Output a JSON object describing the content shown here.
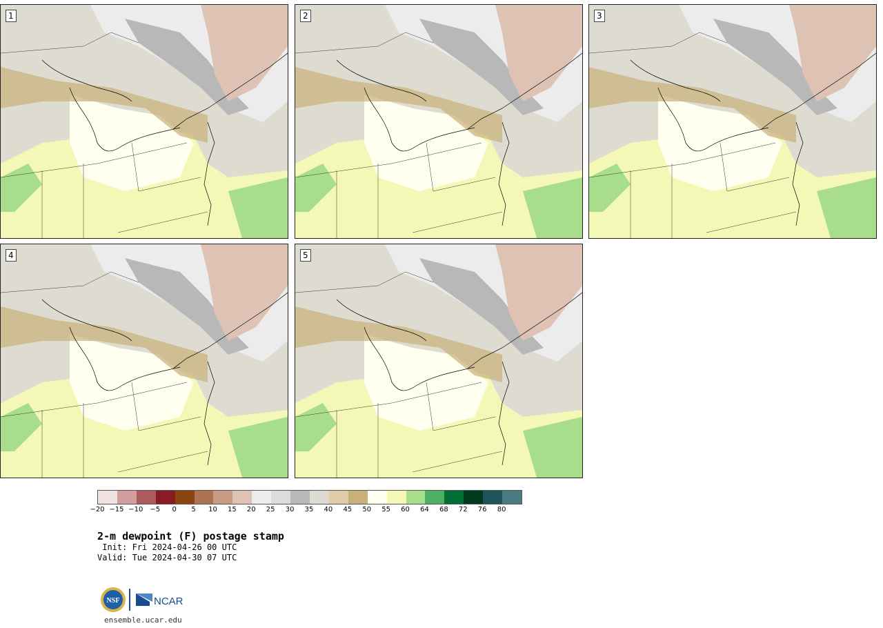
{
  "panels": [
    {
      "label": "1"
    },
    {
      "label": "2"
    },
    {
      "label": "3"
    },
    {
      "label": "4"
    },
    {
      "label": "5"
    }
  ],
  "colorbar": {
    "ticks": [
      "−20",
      "−15",
      "−10",
      "−5",
      "0",
      "5",
      "10",
      "15",
      "20",
      "25",
      "30",
      "35",
      "40",
      "45",
      "50",
      "55",
      "60",
      "64",
      "68",
      "72",
      "76",
      "80"
    ],
    "colors": [
      "#f1e2e2",
      "#d29e9e",
      "#ad5a5e",
      "#8a1a24",
      "#8b4513",
      "#ad7453",
      "#c89c84",
      "#dec3b4",
      "#ececec",
      "#dcdcdc",
      "#b8b8b8",
      "#dedcd0",
      "#dfcda7",
      "#c9b07a",
      "#fffff0",
      "#f4f8b6",
      "#a8dd8b",
      "#4daf62",
      "#006e35",
      "#00391c",
      "#1d5559",
      "#4b7b80"
    ]
  },
  "title": "2-m dewpoint (F) postage stamp",
  "init_line": " Init: Fri 2024-04-26 00 UTC",
  "valid_line": "Valid: Tue 2024-04-30 07 UTC",
  "logos": {
    "nsf": "NSF",
    "ncar": "NCAR"
  },
  "site": "ensemble.ucar.edu"
}
